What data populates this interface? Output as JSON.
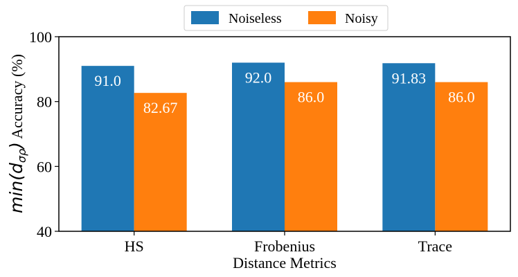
{
  "chart_data": {
    "type": "bar",
    "categories": [
      "HS",
      "Frobenius",
      "Trace"
    ],
    "series": [
      {
        "name": "Noiseless",
        "values": [
          91.0,
          92.0,
          91.83
        ],
        "labels": [
          "91.0",
          "92.0",
          "91.83"
        ],
        "color": "#1f77b4"
      },
      {
        "name": "Noisy",
        "values": [
          82.67,
          86.0,
          86.0
        ],
        "labels": [
          "82.67",
          "86.0",
          "86.0"
        ],
        "color": "#ff7f0e"
      }
    ],
    "xlabel": "Distance Metrics",
    "ylabel": {
      "main": "min(d",
      "sub": "σρ",
      "close": ")",
      "rest": " Accuracy (%)"
    },
    "ylim": [
      40,
      100
    ],
    "yticks": [
      40,
      60,
      80,
      100
    ],
    "legend_position": "top-center"
  }
}
